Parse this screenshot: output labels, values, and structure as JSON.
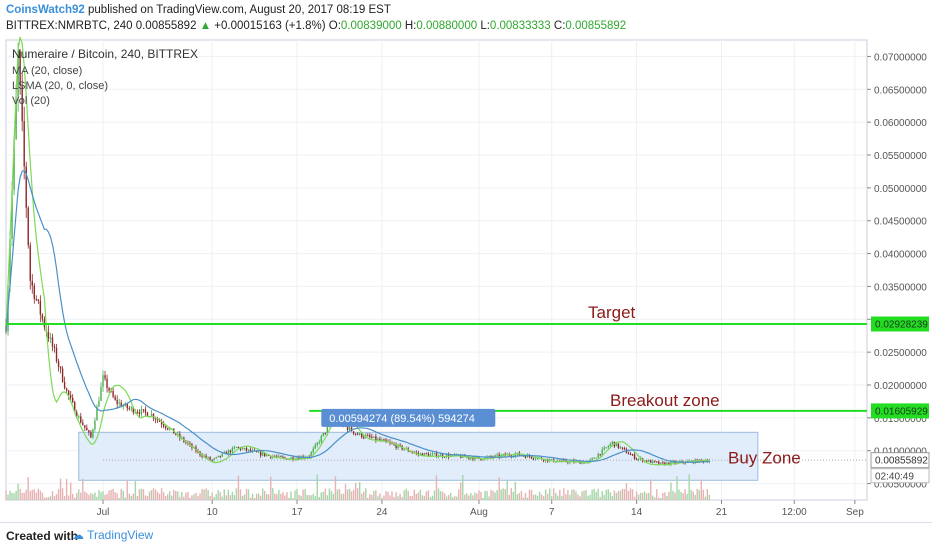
{
  "header": {
    "author": "CoinsWatch92",
    "published_text": " published on TradingView.com, August 20, 2017 08:19 EST",
    "symbol_line": "BITTREX:NMRBTC, 240  0.00855892",
    "change": "+0.00015163 (+1.8%)",
    "o_label": " O:",
    "o_value": "0.00839000",
    "h_label": " H:",
    "h_value": "0.00880000",
    "l_label": " L:",
    "l_value": "0.00833333",
    "c_label": " C:",
    "c_value": "0.00855892"
  },
  "legend": {
    "title": "Numeraire / Bitcoin, 240, BITTREX",
    "ma": "MA (20, close)",
    "lsma": "LSMA (20, 0, close)",
    "vol": "Vol (20)"
  },
  "annotations": {
    "target": "Target",
    "breakout": "Breakout zone",
    "buy": "Buy Zone",
    "measure": "0.00594274 (89.54%) 594274"
  },
  "price_tags": {
    "target": "0.02928239",
    "breakout": "0.01605929",
    "last": "0.00855892",
    "timer": "02:40:49"
  },
  "colors": {
    "up": "#4caf50",
    "down": "#8b2a2a",
    "ma": "#4a90c8",
    "lsma": "#7ed957",
    "level": "#22dd22",
    "zone": "#dceaf9"
  },
  "footer": {
    "created": "Created with",
    "logo": "TradingView"
  },
  "chart_data": {
    "type": "candlestick",
    "y_axis": {
      "min": 0.0025,
      "max": 0.0725,
      "ticks": [
        "0.07000000",
        "0.06500000",
        "0.06000000",
        "0.05500000",
        "0.05000000",
        "0.04500000",
        "0.04000000",
        "0.03500000",
        "0.03000000",
        "0.02500000",
        "0.02000000",
        "0.01500000",
        "0.01000000",
        "0.00500000"
      ]
    },
    "x_axis": {
      "start": "2017-06-23",
      "end": "2017-09-02",
      "labels": [
        {
          "label": "Jul",
          "date": "2017-07-01"
        },
        {
          "label": "10",
          "date": "2017-07-10"
        },
        {
          "label": "17",
          "date": "2017-07-17"
        },
        {
          "label": "24",
          "date": "2017-07-24"
        },
        {
          "label": "Aug",
          "date": "2017-08-01"
        },
        {
          "label": "7",
          "date": "2017-08-07"
        },
        {
          "label": "14",
          "date": "2017-08-14"
        },
        {
          "label": "21",
          "date": "2017-08-21"
        },
        {
          "label": "12:00",
          "date": "2017-08-27"
        },
        {
          "label": "Sep",
          "date": "2017-09-01"
        }
      ]
    },
    "price_path": [
      [
        "2017-06-23",
        0.029
      ],
      [
        "2017-06-24",
        0.07
      ],
      [
        "2017-06-25",
        0.036
      ],
      [
        "2017-06-26",
        0.03
      ],
      [
        "2017-06-27",
        0.025
      ],
      [
        "2017-06-28",
        0.019
      ],
      [
        "2017-06-29",
        0.015
      ],
      [
        "2017-06-30",
        0.012
      ],
      [
        "2017-07-01",
        0.021
      ],
      [
        "2017-07-02",
        0.0175
      ],
      [
        "2017-07-03",
        0.0165
      ],
      [
        "2017-07-05",
        0.0155
      ],
      [
        "2017-07-07",
        0.0125
      ],
      [
        "2017-07-09",
        0.0095
      ],
      [
        "2017-07-10",
        0.0085
      ],
      [
        "2017-07-12",
        0.0105
      ],
      [
        "2017-07-14",
        0.0095
      ],
      [
        "2017-07-16",
        0.0088
      ],
      [
        "2017-07-18",
        0.0092
      ],
      [
        "2017-07-20",
        0.0148
      ],
      [
        "2017-07-22",
        0.0125
      ],
      [
        "2017-07-24",
        0.0115
      ],
      [
        "2017-07-27",
        0.0095
      ],
      [
        "2017-07-30",
        0.0092
      ],
      [
        "2017-08-01",
        0.0088
      ],
      [
        "2017-08-04",
        0.0095
      ],
      [
        "2017-08-07",
        0.0085
      ],
      [
        "2017-08-10",
        0.0082
      ],
      [
        "2017-08-12",
        0.0112
      ],
      [
        "2017-08-14",
        0.0088
      ],
      [
        "2017-08-16",
        0.008
      ],
      [
        "2017-08-18",
        0.0083
      ],
      [
        "2017-08-20",
        0.00856
      ]
    ],
    "levels": {
      "target": 0.02928239,
      "breakout": 0.01605929,
      "last": 0.00855892
    },
    "breakout_start": "2017-07-18",
    "buy_zone": {
      "from": 0.0055,
      "to": 0.0128,
      "start": "2017-06-29",
      "end": "2017-08-24"
    },
    "measure_box_start": "2017-07-19",
    "y_scale": "linear",
    "grid": true
  }
}
